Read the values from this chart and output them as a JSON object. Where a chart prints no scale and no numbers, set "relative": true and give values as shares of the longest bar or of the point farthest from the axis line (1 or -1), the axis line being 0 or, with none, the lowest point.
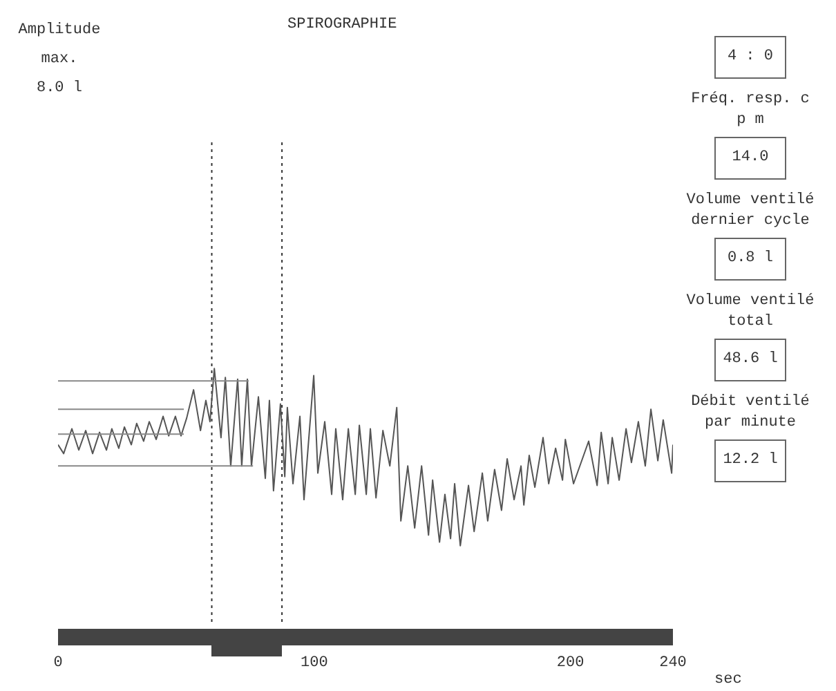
{
  "chart_data": {
    "type": "line",
    "title": "SPIROGRAPHIE",
    "xlabel": "sec",
    "annotations": [
      "Amplitude max.",
      "8.0 l",
      "4 : 0",
      "Fréq. resp. c p m",
      "14.0",
      "Volume ventilé dernier cycle",
      "0.8 l",
      "Volume ventilé total",
      "48.6 l",
      "Débit ventilé par minute",
      "12.2 l"
    ],
    "relative": true,
    "xlim": [
      0,
      240
    ],
    "xticks": [
      0,
      100,
      200,
      240
    ],
    "legend": false,
    "grid": false,
    "marker": "none",
    "series": [
      {
        "color": "#555555",
        "line_style": "solid",
        "x": [
          0,
          2.2,
          5.4,
          8.1,
          10.8,
          13.5,
          16.2,
          18.9,
          21.0,
          23.7,
          25.9,
          28.6,
          30.7,
          33.4,
          35.6,
          38.3,
          41.0,
          43.2,
          45.8,
          48.0,
          50.2,
          52.9,
          55.6,
          57.7,
          59.3,
          61.0,
          63.6,
          65.3,
          67.4,
          70.1,
          71.7,
          73.9,
          75.5,
          78.2,
          80.9,
          82.5,
          84.1,
          86.8,
          88.5,
          89.5,
          91.7,
          94.4,
          96.0,
          99.8,
          101.4,
          104.1,
          106.8,
          108.4,
          111.1,
          113.3,
          116.0,
          117.6,
          120.3,
          121.9,
          124.1,
          126.8,
          129.5,
          132.2,
          133.8,
          136.5,
          139.2,
          141.9,
          144.6,
          146.2,
          148.9,
          151.0,
          153.2,
          154.8,
          157.0,
          160.2,
          162.4,
          165.6,
          167.7,
          170.4,
          173.1,
          175.3,
          178.0,
          180.7,
          181.8,
          183.9,
          186.1,
          189.3,
          191.5,
          194.2,
          196.9,
          198.0,
          201.2,
          207.1,
          210.4,
          212.0,
          214.7,
          216.3,
          219.0,
          221.7,
          223.8,
          226.5,
          229.2,
          231.4,
          234.1,
          236.2,
          239.5,
          240
        ],
        "values": [
          0.57,
          0.52,
          0.66,
          0.54,
          0.65,
          0.52,
          0.64,
          0.54,
          0.66,
          0.55,
          0.67,
          0.57,
          0.69,
          0.59,
          0.7,
          0.6,
          0.73,
          0.62,
          0.73,
          0.62,
          0.72,
          0.88,
          0.65,
          0.82,
          0.7,
          1.0,
          0.61,
          0.95,
          0.45,
          0.94,
          0.45,
          0.94,
          0.45,
          0.84,
          0.38,
          0.82,
          0.31,
          0.8,
          0.39,
          0.78,
          0.35,
          0.73,
          0.26,
          0.96,
          0.41,
          0.7,
          0.29,
          0.66,
          0.26,
          0.66,
          0.29,
          0.68,
          0.29,
          0.66,
          0.27,
          0.65,
          0.45,
          0.78,
          0.14,
          0.45,
          0.1,
          0.45,
          0.06,
          0.37,
          0.02,
          0.29,
          0.04,
          0.35,
          0.0,
          0.34,
          0.08,
          0.41,
          0.14,
          0.43,
          0.2,
          0.49,
          0.26,
          0.45,
          0.23,
          0.51,
          0.33,
          0.61,
          0.35,
          0.55,
          0.37,
          0.6,
          0.35,
          0.59,
          0.34,
          0.64,
          0.35,
          0.61,
          0.37,
          0.66,
          0.47,
          0.7,
          0.45,
          0.77,
          0.48,
          0.71,
          0.41,
          0.57
        ]
      },
      {
        "color": "#888888",
        "line_style": "solid",
        "x": [
          0,
          74.4
        ],
        "values": [
          0.93,
          0.93
        ]
      },
      {
        "color": "#888888",
        "line_style": "solid",
        "x": [
          0,
          49.1
        ],
        "values": [
          0.77,
          0.77
        ]
      },
      {
        "color": "#888888",
        "line_style": "solid",
        "x": [
          0,
          49.1
        ],
        "values": [
          0.63,
          0.63
        ]
      },
      {
        "color": "#888888",
        "line_style": "solid",
        "x": [
          0,
          76.1
        ],
        "values": [
          0.45,
          0.45
        ]
      }
    ],
    "ref_lines": [
      {
        "axis": "x",
        "value": 60,
        "color": "#333333",
        "line_style": "dotted"
      },
      {
        "axis": "x",
        "value": 87.4,
        "color": "#333333",
        "line_style": "dotted"
      }
    ]
  }
}
